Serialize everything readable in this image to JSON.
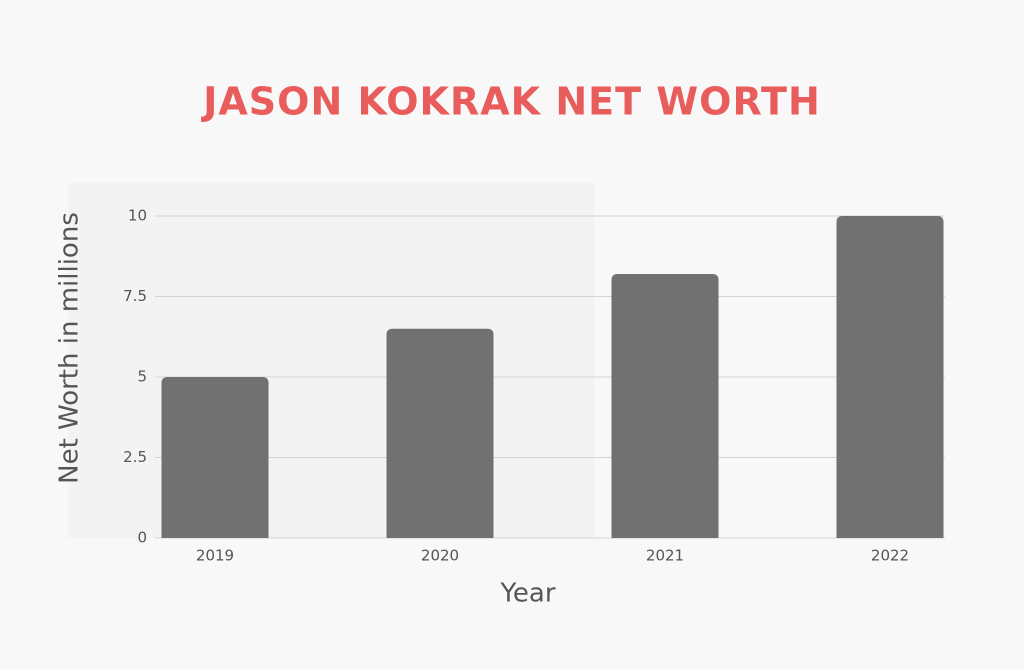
{
  "chart_data": {
    "type": "bar",
    "title": "JASON KOKRAK NET WORTH",
    "y_label": "Net Worth in millions",
    "x_label": "Year",
    "categories": [
      "2019",
      "2020",
      "2021",
      "2022"
    ],
    "values": [
      5,
      6.5,
      8.2,
      10
    ],
    "color": "#717171",
    "ylim": [
      0,
      10
    ],
    "yticks": [
      0,
      2.5,
      5,
      7.5,
      10
    ],
    "grid": true
  }
}
